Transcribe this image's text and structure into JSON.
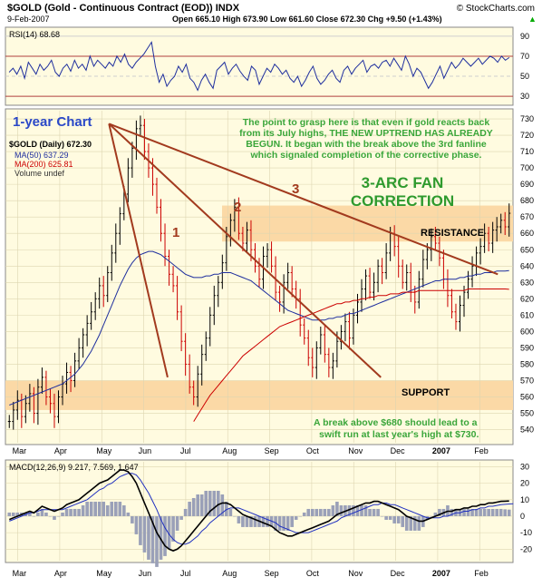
{
  "header": {
    "symbol_title": "$GOLD (Gold - Continuous Contract (EOD)) INDX",
    "date": "9-Feb-2007",
    "ohlc": "Open 665.10  High 673.90  Low 661.60  Close 672.30  Chg +9.50 (+1.43%)",
    "trend": "▲",
    "watermark": "© StockCharts.com"
  },
  "annotations": {
    "chart_period": "1-year Chart",
    "commentary": [
      "The point to grasp here is that even if gold reacts back",
      "from its July highs, THE NEW UPTREND HAS ALREADY",
      "BEGUN. It began with the break above the 3rd fanline",
      "which signaled completion of the corrective phase."
    ],
    "fan_title": [
      "3-ARC FAN",
      "CORRECTION"
    ],
    "fan_numbers": [
      "1",
      "2",
      "3"
    ],
    "resistance": "RESISTANCE",
    "support": "SUPPORT",
    "breakout_note": [
      "A break above $680 should lead to a",
      "swift run at last year's high at $730."
    ]
  },
  "colors": {
    "panel_bg": "#fffbe0",
    "band": "#fbd9a6",
    "price_up": "#000000",
    "price_down": "#cc0000",
    "ma50": "#1f2f9e",
    "ma200": "#cc0000",
    "fanline": "#a23a1e",
    "rsi": "#1f2f9e",
    "macd": "#000000",
    "macd_signal": "#2030c0",
    "histogram": "#9aa0b8",
    "comment_text": "#3aa63a",
    "period_text": "#2a48c8",
    "fan_title_text": "#2e9a2e",
    "grid": "#cfcfcf"
  },
  "chart_data": [
    {
      "type": "line",
      "name": "RSI panel",
      "legend": "RSI(14) 68.68",
      "yticks": [
        30,
        50,
        70,
        90
      ],
      "ylim": [
        22,
        98
      ],
      "overbought": 70,
      "oversold": 30,
      "values": [
        54,
        58,
        52,
        60,
        48,
        64,
        58,
        52,
        62,
        56,
        60,
        66,
        54,
        50,
        58,
        62,
        55,
        66,
        58,
        62,
        56,
        70,
        60,
        66,
        62,
        58,
        64,
        60,
        70,
        64,
        72,
        62,
        58,
        64,
        68,
        72,
        78,
        84,
        60,
        44,
        52,
        40,
        46,
        50,
        60,
        54,
        62,
        48,
        44,
        36,
        46,
        52,
        44,
        38,
        56,
        60,
        64,
        52,
        58,
        62,
        55,
        50,
        46,
        60,
        56,
        42,
        50,
        58,
        54,
        62,
        58,
        52,
        56,
        48,
        44,
        50,
        40,
        46,
        54,
        60,
        48,
        42,
        46,
        52,
        56,
        48,
        44,
        56,
        60,
        52,
        58,
        62,
        66,
        54,
        60,
        62,
        58,
        64,
        66,
        60,
        68,
        62,
        56,
        70,
        62,
        50,
        58,
        54,
        46,
        38,
        44,
        52,
        60,
        48,
        56,
        64,
        58,
        62,
        68,
        64,
        60,
        64,
        68,
        62,
        66,
        70,
        68,
        64,
        70,
        66,
        68.68
      ]
    },
    {
      "type": "candlestick",
      "name": "$GOLD (Daily) 672.30",
      "legend": [
        "$GOLD (Daily) 672.30",
        "MA(50) 637.29",
        "MA(200) 625.81",
        "Volume undef"
      ],
      "series": [
        {
          "name": "MA(50) 637.29"
        },
        {
          "name": "MA(200) 625.81"
        }
      ],
      "yticks": [
        540,
        550,
        560,
        570,
        580,
        590,
        600,
        610,
        620,
        630,
        640,
        650,
        660,
        670,
        680,
        690,
        700,
        710,
        720,
        730
      ],
      "ylim": [
        532,
        735
      ],
      "xticks": [
        "Mar",
        "Apr",
        "May",
        "Jun",
        "Jul",
        "Aug",
        "Sep",
        "Oct",
        "Nov",
        "Dec",
        "2007",
        "Feb"
      ],
      "close": [
        545,
        552,
        558,
        548,
        556,
        562,
        550,
        566,
        572,
        560,
        556,
        548,
        560,
        568,
        575,
        570,
        582,
        590,
        598,
        605,
        612,
        620,
        628,
        622,
        636,
        648,
        660,
        672,
        684,
        700,
        712,
        724,
        726,
        710,
        700,
        690,
        676,
        660,
        646,
        635,
        628,
        612,
        594,
        580,
        566,
        560,
        574,
        586,
        596,
        610,
        622,
        630,
        642,
        658,
        668,
        676,
        660,
        654,
        662,
        650,
        640,
        632,
        646,
        650,
        640,
        624,
        618,
        630,
        636,
        626,
        620,
        604,
        596,
        584,
        578,
        590,
        598,
        586,
        578,
        582,
        594,
        600,
        606,
        596,
        610,
        618,
        626,
        634,
        624,
        630,
        640,
        636,
        648,
        660,
        652,
        640,
        630,
        636,
        624,
        618,
        632,
        644,
        650,
        658,
        654,
        645,
        632,
        622,
        612,
        606,
        616,
        624,
        632,
        640,
        648,
        652,
        660,
        654,
        662,
        664,
        668,
        664,
        672.3
      ],
      "ma50": [
        555,
        556,
        557,
        558,
        559,
        560,
        561,
        562,
        563,
        564,
        565,
        566,
        567,
        568,
        570,
        572,
        574,
        577,
        580,
        584,
        588,
        593,
        598,
        604,
        610,
        616,
        622,
        628,
        633,
        638,
        642,
        645,
        647,
        648,
        649,
        649,
        648,
        647,
        645,
        643,
        641,
        639,
        637,
        635,
        634,
        633,
        633,
        633,
        634,
        634,
        635,
        635,
        636,
        636,
        636,
        635,
        634,
        633,
        632,
        631,
        629,
        627,
        625,
        623,
        621,
        619,
        617,
        615,
        613,
        612,
        611,
        610,
        609,
        608,
        607,
        607,
        607,
        607,
        608,
        608,
        609,
        609,
        610,
        611,
        611,
        612,
        613,
        614,
        615,
        616,
        617,
        618,
        619,
        620,
        621,
        622,
        623,
        624,
        625,
        626,
        627,
        628,
        629,
        630,
        631,
        631,
        632,
        632,
        632,
        632,
        633,
        633,
        634,
        634,
        635,
        635,
        636,
        636,
        636,
        637,
        637,
        637,
        637.29
      ],
      "ma200": [
        null,
        null,
        null,
        null,
        null,
        null,
        null,
        null,
        null,
        null,
        null,
        null,
        null,
        null,
        null,
        null,
        null,
        null,
        null,
        null,
        null,
        null,
        null,
        null,
        null,
        null,
        null,
        null,
        null,
        null,
        null,
        null,
        null,
        null,
        null,
        null,
        null,
        null,
        null,
        null,
        null,
        null,
        null,
        null,
        null,
        545,
        549,
        553,
        557,
        561,
        564,
        567,
        570,
        573,
        576,
        579,
        582,
        585,
        587,
        589,
        591,
        593,
        595,
        597,
        599,
        601,
        603,
        604,
        605,
        606,
        607,
        608,
        609,
        610,
        611,
        612,
        613,
        614,
        615,
        616,
        617,
        617,
        618,
        618,
        619,
        619,
        620,
        620,
        621,
        621,
        622,
        622,
        622,
        623,
        623,
        623,
        624,
        624,
        624,
        624,
        625,
        625,
        625,
        625,
        625,
        625,
        625,
        625,
        625,
        625,
        625,
        625,
        626,
        626,
        626,
        626,
        626,
        626,
        626,
        626,
        626,
        626,
        625.81
      ],
      "resistance_band": [
        655,
        677
      ],
      "support_band": [
        552,
        570
      ],
      "fanlines": [
        {
          "label": "1",
          "from": [
            "May",
            727
          ],
          "to": [
            "Jul",
            572
          ]
        },
        {
          "label": "2",
          "from": [
            "May",
            727
          ],
          "to": [
            "Nov",
            572
          ]
        },
        {
          "label": "3",
          "from": [
            "May",
            727
          ],
          "to": [
            "Feb",
            635
          ]
        }
      ]
    },
    {
      "type": "line",
      "name": "MACD panel",
      "legend": "MACD(12,26,9) 9.217, 7.569, 1.647",
      "yticks": [
        -20,
        -10,
        0,
        10,
        20,
        30
      ],
      "ylim": [
        -27,
        33
      ],
      "macd": [
        -2,
        -1,
        0,
        1,
        2,
        3,
        2,
        4,
        6,
        5,
        4,
        3,
        4,
        5,
        7,
        8,
        9,
        10,
        12,
        14,
        16,
        18,
        20,
        21,
        22,
        24,
        26,
        28,
        28,
        27,
        24,
        20,
        14,
        8,
        2,
        -4,
        -10,
        -14,
        -18,
        -20,
        -21,
        -20,
        -18,
        -15,
        -12,
        -9,
        -6,
        -3,
        0,
        3,
        5,
        7,
        8,
        8,
        7,
        5,
        3,
        1,
        0,
        -1,
        -2,
        -3,
        -4,
        -5,
        -6,
        -8,
        -10,
        -11,
        -12,
        -12,
        -11,
        -10,
        -9,
        -8,
        -7,
        -6,
        -5,
        -4,
        -3,
        -1,
        1,
        2,
        3,
        4,
        5,
        6,
        7,
        8,
        8,
        9,
        9,
        8,
        7,
        6,
        5,
        4,
        2,
        0,
        -1,
        -2,
        -3,
        -3,
        -2,
        -1,
        0,
        1,
        2,
        3,
        3,
        4,
        4,
        5,
        5,
        6,
        6,
        7,
        7,
        8,
        8,
        8.5,
        9,
        9.1,
        9.217
      ],
      "signal": [
        -3,
        -2,
        -1,
        0,
        1,
        2,
        2,
        3,
        4,
        4,
        4,
        4,
        4,
        4,
        5,
        6,
        7,
        8,
        9,
        10,
        12,
        14,
        16,
        17,
        19,
        20,
        22,
        24,
        25,
        26,
        26,
        25,
        22,
        18,
        14,
        9,
        4,
        -2,
        -7,
        -11,
        -14,
        -16,
        -17,
        -17,
        -16,
        -14,
        -12,
        -9,
        -7,
        -4,
        -2,
        0,
        2,
        4,
        5,
        5,
        5,
        4,
        3,
        2,
        1,
        0,
        -1,
        -2,
        -3,
        -4,
        -6,
        -7,
        -8,
        -9,
        -10,
        -10,
        -10,
        -10,
        -9,
        -8,
        -7,
        -6,
        -5,
        -4,
        -3,
        -1,
        0,
        1,
        2,
        3,
        4,
        5,
        6,
        7,
        7,
        8,
        8,
        7,
        7,
        6,
        5,
        4,
        3,
        2,
        1,
        0,
        -1,
        -1,
        -1,
        -1,
        0,
        0,
        1,
        2,
        2,
        3,
        3,
        4,
        4,
        5,
        5,
        6,
        6,
        6.5,
        7,
        7.2,
        7.4,
        7.569
      ],
      "histogram": "macd minus signal"
    }
  ]
}
